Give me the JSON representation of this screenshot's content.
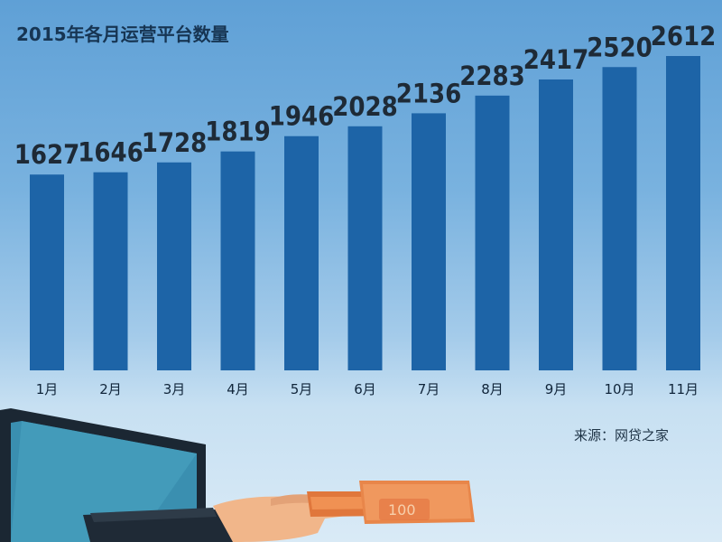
{
  "source": "来源：网贷之家",
  "banknote_denomination": "100",
  "colors": {
    "bar": "#1d64a7",
    "bar_highlight": "#2a74b8"
  },
  "chart_data": {
    "type": "bar",
    "title": "2015年各月运营平台数量",
    "xlabel": "",
    "ylabel": "",
    "categories": [
      "1月",
      "2月",
      "3月",
      "4月",
      "5月",
      "6月",
      "7月",
      "8月",
      "9月",
      "10月",
      "11月"
    ],
    "values": [
      1627,
      1646,
      1728,
      1819,
      1946,
      2028,
      2136,
      2283,
      2417,
      2520,
      2612
    ],
    "value_labels": true,
    "grid": false,
    "ylim": [
      0,
      2612
    ]
  }
}
